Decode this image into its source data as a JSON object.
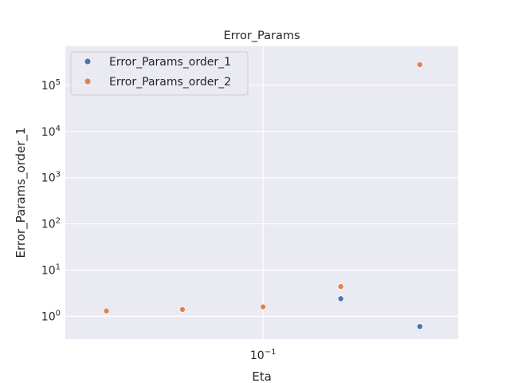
{
  "chart_data": {
    "type": "scatter",
    "title": "Error_Params",
    "xlabel": "Eta",
    "ylabel": "Error_Params_order_1",
    "xscale": "log",
    "yscale": "log",
    "xlim": [
      0.0417,
      0.237
    ],
    "ylim": [
      0.32,
      700000
    ],
    "x_ticks": [
      {
        "value": 0.1,
        "label_base": "10",
        "label_exp": "−1"
      }
    ],
    "y_ticks": [
      {
        "value": 1,
        "label_base": "10",
        "label_exp": "0"
      },
      {
        "value": 10,
        "label_base": "10",
        "label_exp": "1"
      },
      {
        "value": 100,
        "label_base": "10",
        "label_exp": "2"
      },
      {
        "value": 1000,
        "label_base": "10",
        "label_exp": "3"
      },
      {
        "value": 10000,
        "label_base": "10",
        "label_exp": "4"
      },
      {
        "value": 100000,
        "label_base": "10",
        "label_exp": "5"
      }
    ],
    "grid": true,
    "legend_position": "top-left",
    "series": [
      {
        "name": "Error_Params_order_1",
        "color": "#4c72b0",
        "points": [
          {
            "x": 0.05,
            "y": 1.28
          },
          {
            "x": 0.07,
            "y": 1.37
          },
          {
            "x": 0.1,
            "y": 1.58
          },
          {
            "x": 0.141,
            "y": 2.4
          },
          {
            "x": 0.2,
            "y": 0.6
          }
        ]
      },
      {
        "name": "Error_Params_order_2",
        "color": "#dd8452",
        "points": [
          {
            "x": 0.05,
            "y": 1.3
          },
          {
            "x": 0.07,
            "y": 1.4
          },
          {
            "x": 0.1,
            "y": 1.6
          },
          {
            "x": 0.141,
            "y": 4.4
          },
          {
            "x": 0.2,
            "y": 280000
          }
        ]
      }
    ]
  }
}
